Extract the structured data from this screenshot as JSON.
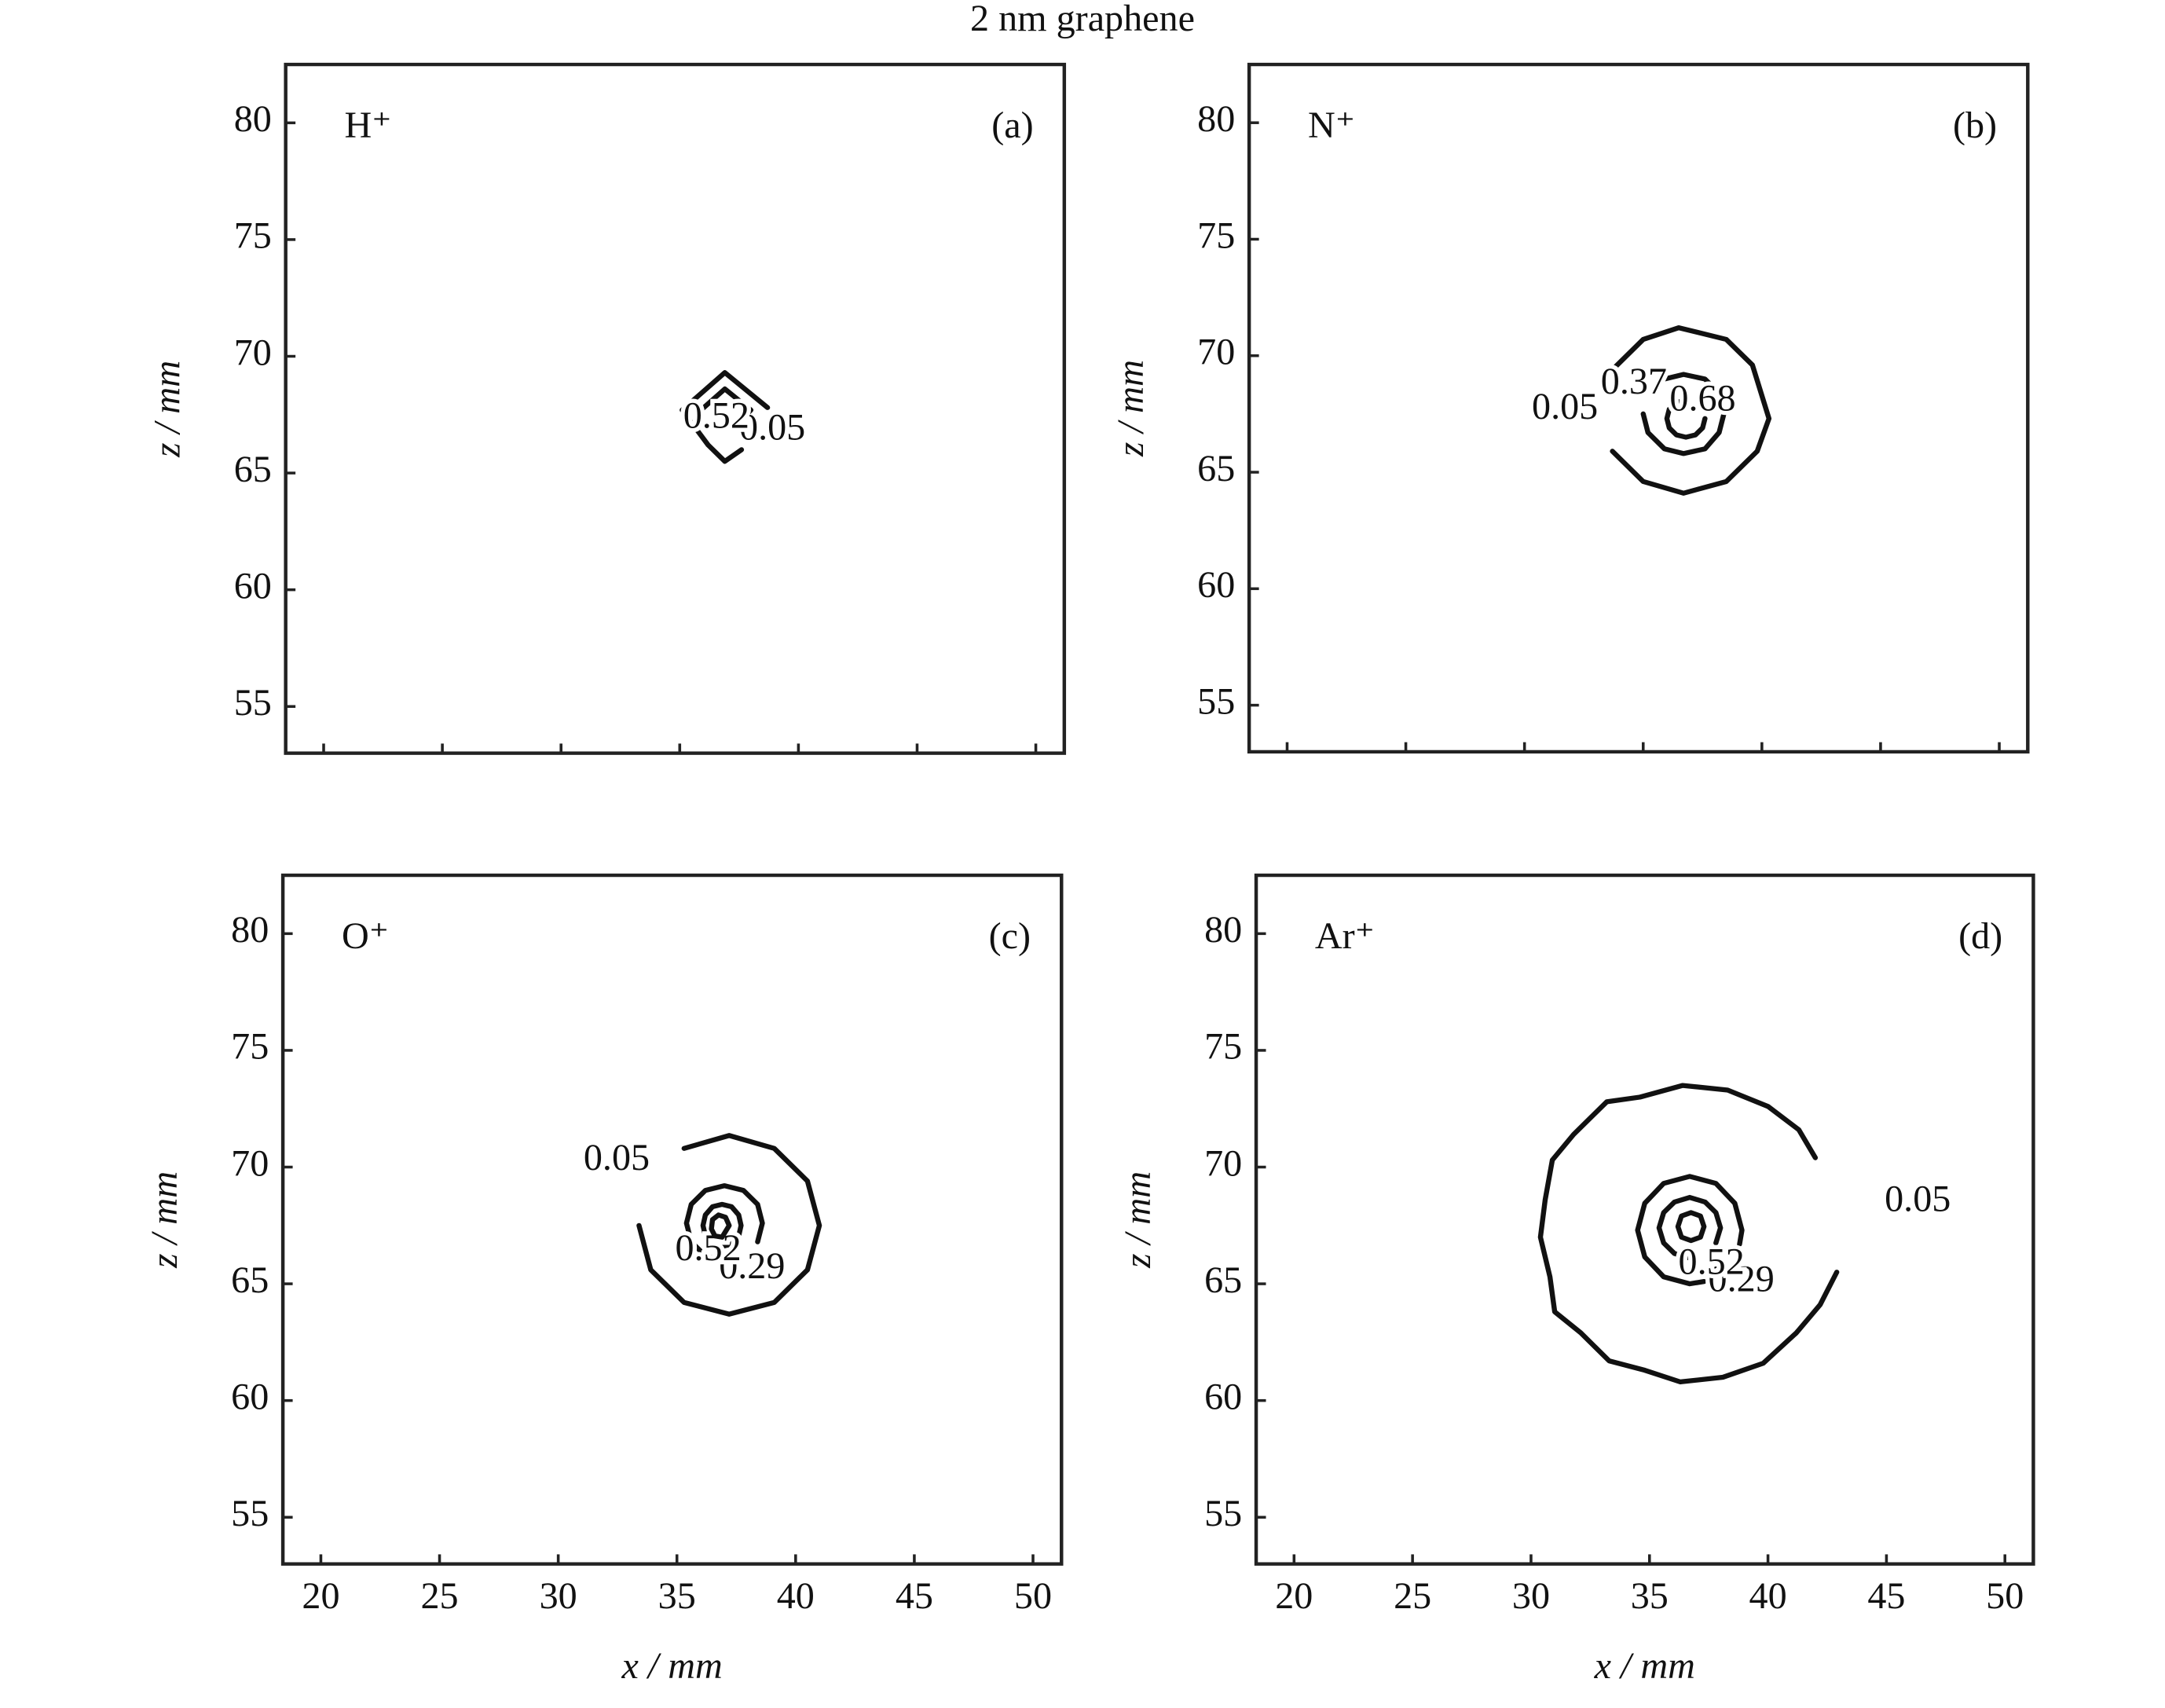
{
  "title": "2 nm graphene",
  "chart_data": [
    {
      "type": "contour",
      "label": "H⁺",
      "panel": "(a)",
      "ylabel": "z / mm",
      "xlim": [
        18.4,
        51.2
      ],
      "ylim": [
        53,
        82.5
      ],
      "xticks": [
        20,
        25,
        30,
        35,
        40,
        45,
        50
      ],
      "yticks": [
        55,
        60,
        65,
        70,
        75,
        80
      ],
      "xtick_labels": false,
      "contours": [
        {
          "level": 0.05,
          "x": [
            38.7,
            36.9,
            35.1,
            36.2,
            36.9,
            37.6
          ],
          "y": [
            67.8,
            69.3,
            67.7,
            66.2,
            65.5,
            66.0
          ]
        },
        {
          "level": 0.52,
          "x": [
            37.6,
            38.0,
            36.9,
            35.9
          ],
          "y": [
            67.3,
            67.7,
            68.6,
            67.7
          ]
        }
      ]
    },
    {
      "type": "contour",
      "label": "N⁺",
      "panel": "(b)",
      "ylabel": "z / mm",
      "xlim": [
        18.4,
        51.2
      ],
      "ylim": [
        53,
        82.5
      ],
      "xticks": [
        20,
        25,
        30,
        35,
        40,
        45,
        50
      ],
      "yticks": [
        55,
        60,
        65,
        70,
        75,
        80
      ],
      "xtick_labels": false,
      "contours": [
        {
          "level": 0.05,
          "x": [
            33.7,
            35.0,
            36.7,
            38.5,
            39.8,
            40.3,
            39.6,
            38.5,
            36.5,
            35.0,
            33.7
          ],
          "y": [
            65.9,
            64.6,
            64.1,
            64.6,
            65.9,
            67.3,
            69.6,
            70.7,
            71.2,
            70.7,
            69.4
          ]
        },
        {
          "level": 0.37,
          "x": [
            35.0,
            35.2,
            35.9,
            36.7,
            37.6,
            38.2,
            38.4,
            38.2,
            37.6,
            36.7,
            35.9
          ],
          "y": [
            67.5,
            66.7,
            66.0,
            65.8,
            66.0,
            66.7,
            67.5,
            68.4,
            69.0,
            69.2,
            69.0
          ]
        },
        {
          "level": 0.68,
          "x": [
            36.8,
            36.4,
            36.1,
            36.0,
            36.1,
            36.4,
            36.8,
            37.2,
            37.5,
            37.6
          ],
          "y": [
            68.1,
            68.0,
            67.7,
            67.3,
            66.9,
            66.6,
            66.5,
            66.6,
            66.9,
            67.3
          ]
        }
      ]
    },
    {
      "type": "contour",
      "label": "O⁺",
      "panel": "(c)",
      "xlabel": "x / mm",
      "ylabel": "z / mm",
      "xlim": [
        18.4,
        51.2
      ],
      "ylim": [
        53,
        82.5
      ],
      "xticks": [
        20,
        25,
        30,
        35,
        40,
        45,
        50
      ],
      "yticks": [
        55,
        60,
        65,
        70,
        75,
        80
      ],
      "xtick_labels": true,
      "contours": [
        {
          "level": 0.05,
          "x": [
            33.4,
            33.9,
            35.3,
            37.2,
            39.1,
            40.5,
            41.0,
            40.5,
            39.1,
            37.2,
            35.3
          ],
          "y": [
            67.5,
            65.6,
            64.2,
            63.7,
            64.2,
            65.6,
            67.5,
            69.4,
            70.8,
            71.35,
            70.8
          ]
        },
        {
          "level": 0.29,
          "x": [
            38.4,
            38.6,
            38.4,
            37.8,
            37.0,
            36.2,
            35.6,
            35.4,
            35.6,
            36.2,
            37.0
          ],
          "y": [
            66.8,
            67.6,
            68.4,
            69.0,
            69.2,
            69.0,
            68.4,
            67.6,
            66.8,
            66.2,
            66.0
          ]
        },
        {
          "level": 0.52,
          "x": [
            36.9,
            37.3,
            37.6,
            37.7,
            37.6,
            37.3,
            36.9,
            36.5,
            36.2,
            36.1,
            36.2
          ],
          "y": [
            66.6,
            66.7,
            67.05,
            67.5,
            67.95,
            68.3,
            68.4,
            68.3,
            67.95,
            67.5,
            67.05
          ]
        },
        {
          "level": null,
          "x": [
            37.2,
            37.05,
            36.75,
            36.5,
            36.45,
            36.6,
            36.9,
            37.2
          ],
          "y": [
            67.5,
            67.85,
            67.95,
            67.75,
            67.35,
            67.05,
            67.0,
            67.5
          ]
        }
      ]
    },
    {
      "type": "contour",
      "label": "Ar⁺",
      "panel": "(d)",
      "xlabel": "x / mm",
      "ylabel": "z / mm",
      "xlim": [
        18.4,
        51.2
      ],
      "ylim": [
        53,
        82.5
      ],
      "xticks": [
        20,
        25,
        30,
        35,
        40,
        45,
        50
      ],
      "yticks": [
        55,
        60,
        65,
        70,
        75,
        80
      ],
      "xtick_labels": true,
      "contours": [
        {
          "level": 0.05,
          "x": [
            42.0,
            41.3,
            40.0,
            38.3,
            36.4,
            34.6,
            33.2,
            31.8,
            30.9,
            30.6,
            30.4,
            30.8,
            31.0,
            32.1,
            33.3,
            34.8,
            36.3,
            38.1,
            39.8,
            41.2,
            42.2,
            42.9
          ],
          "y": [
            70.4,
            71.6,
            72.6,
            73.3,
            73.5,
            73.0,
            72.8,
            71.4,
            70.3,
            68.6,
            67.0,
            65.3,
            63.8,
            62.9,
            61.7,
            61.3,
            60.8,
            61.0,
            61.6,
            62.9,
            64.1,
            65.5
          ]
        },
        {
          "level": 0.29,
          "x": [
            38.8,
            38.9,
            38.6,
            37.8,
            36.7,
            35.6,
            34.8,
            34.5,
            34.8,
            35.6,
            36.7,
            37.3
          ],
          "y": [
            66.7,
            67.3,
            68.45,
            69.3,
            69.6,
            69.3,
            68.45,
            67.3,
            66.15,
            65.3,
            65.0,
            65.1
          ]
        },
        {
          "level": 0.52,
          "x": [
            37.8,
            38.0,
            37.8,
            37.35,
            36.7,
            36.05,
            35.6,
            35.4,
            35.6,
            36.05,
            36.7
          ],
          "y": [
            66.75,
            67.4,
            68.05,
            68.5,
            68.7,
            68.5,
            68.05,
            67.4,
            66.75,
            66.3,
            66.1
          ]
        },
        {
          "level": null,
          "x": [
            37.3,
            37.15,
            36.75,
            36.35,
            36.2,
            36.35,
            36.75,
            37.15,
            37.3
          ],
          "y": [
            67.45,
            67.9,
            68.05,
            67.9,
            67.45,
            67.0,
            66.85,
            67.0,
            67.45
          ]
        }
      ]
    }
  ]
}
